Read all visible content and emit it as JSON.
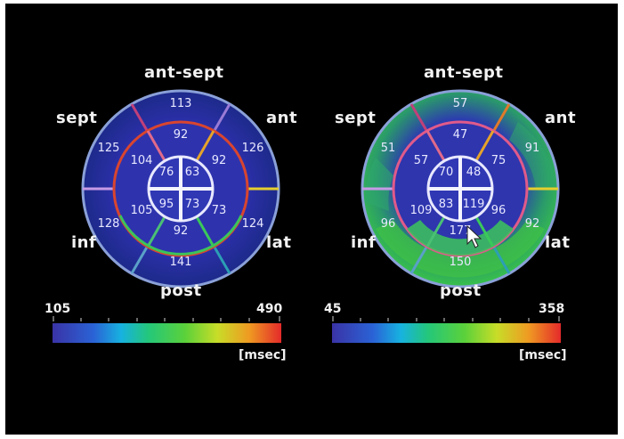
{
  "colors": {
    "background": "#000000",
    "label": "#f2f2f2",
    "plot_base": "#2b2ea8",
    "colorbar_stops": [
      "#3a33a6",
      "#2a63d6",
      "#17b2e0",
      "#24c77a",
      "#5bd13a",
      "#c8dd28",
      "#ef9a22",
      "#e42a2a"
    ]
  },
  "left_plot": {
    "orientation_labels": {
      "top": "ant-sept",
      "upper_left": "sept",
      "upper_right": "ant",
      "lower_left": "inf",
      "lower_right": "lat",
      "bottom": "post"
    },
    "segments": {
      "basal": [
        "113",
        "126",
        "124",
        "141",
        "128",
        "125"
      ],
      "mid": [
        "92",
        "92",
        "73",
        "92",
        "105",
        "104"
      ],
      "apical": [
        "63",
        "73",
        "95",
        "76"
      ]
    },
    "scale": {
      "min": "105",
      "max": "490",
      "unit": "[msec]"
    }
  },
  "right_plot": {
    "orientation_labels": {
      "top": "ant-sept",
      "upper_left": "sept",
      "upper_right": "ant",
      "lower_left": "inf",
      "lower_right": "lat",
      "bottom": "post"
    },
    "segments": {
      "basal": [
        "57",
        "91",
        "92",
        "150",
        "96",
        "51"
      ],
      "mid": [
        "47",
        "75",
        "96",
        "177",
        "109",
        "57"
      ],
      "apical": [
        "48",
        "119",
        "83",
        "70"
      ]
    },
    "scale": {
      "min": "45",
      "max": "358",
      "unit": "[msec]"
    }
  }
}
